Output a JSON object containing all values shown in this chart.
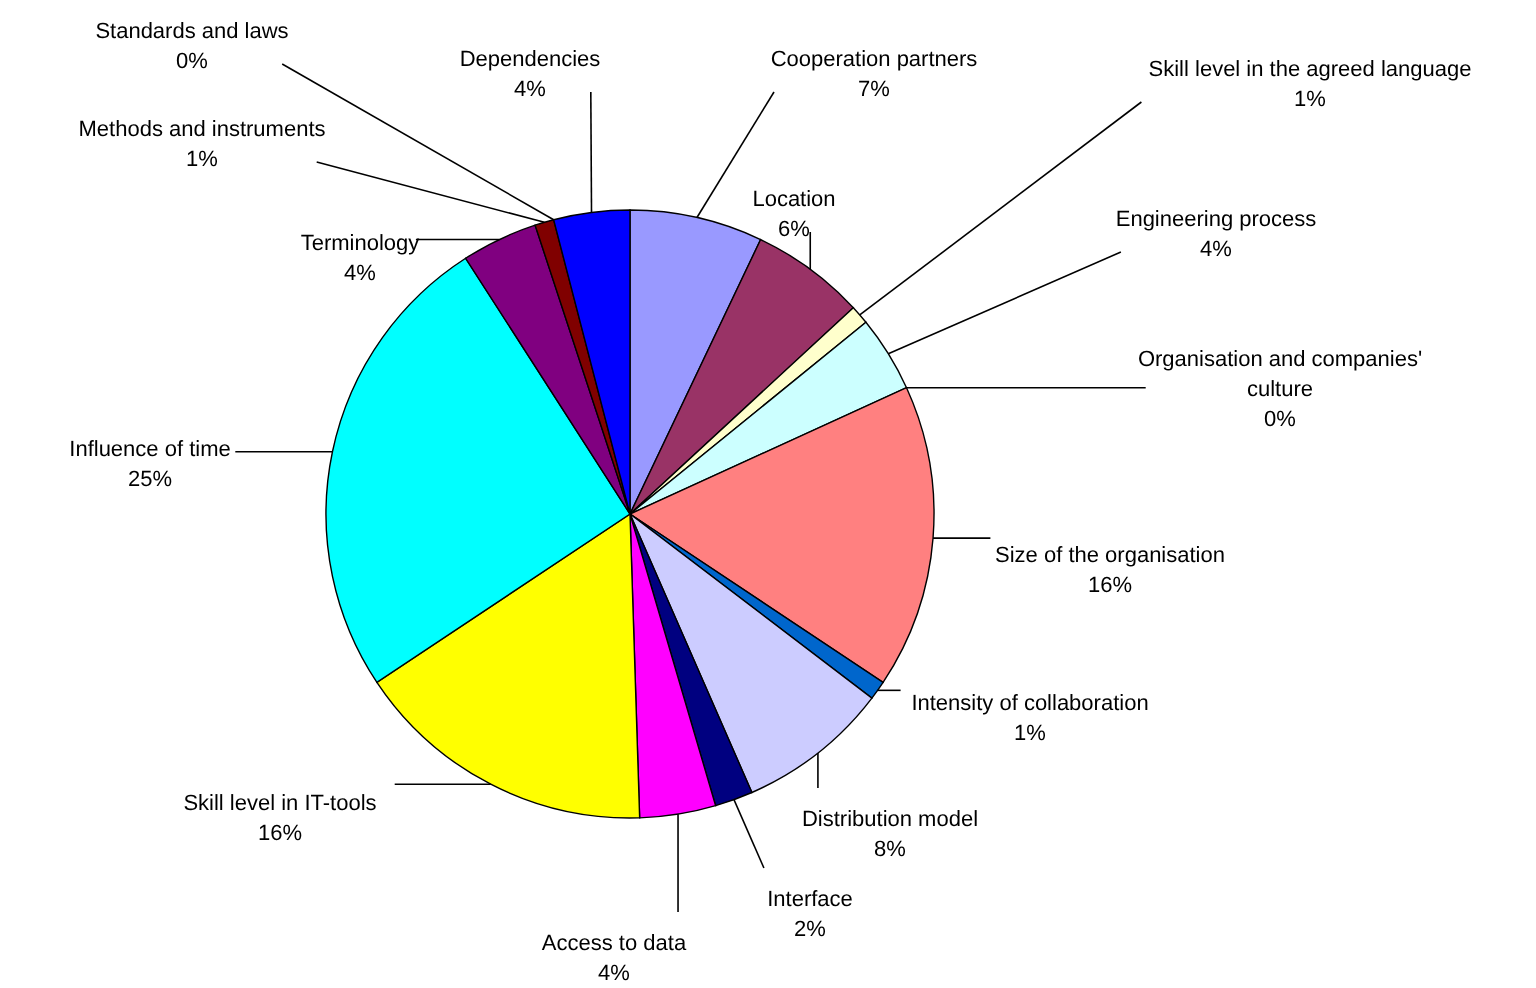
{
  "chart_data": {
    "type": "pie",
    "categories": [
      "Cooperation partners",
      "Location",
      "Skill level in the agreed language",
      "Engineering process",
      "Organisation and companies' culture",
      "Size of the organisation",
      "Intensity of collaboration",
      "Distribution model",
      "Interface",
      "Access to data",
      "Skill level in IT-tools",
      "Influence of time",
      "Terminology",
      "Methods and instruments",
      "Standards and laws",
      "Dependencies"
    ],
    "values": [
      7,
      6,
      1,
      4,
      0,
      16,
      1,
      8,
      2,
      4,
      16,
      25,
      4,
      1,
      0,
      4
    ],
    "value_labels": [
      "7%",
      "6%",
      "1%",
      "4%",
      "0%",
      "16%",
      "1%",
      "8%",
      "2%",
      "4%",
      "16%",
      "25%",
      "4%",
      "1%",
      "0%",
      "4%"
    ],
    "colors": [
      "#9999ff",
      "#993366",
      "#ffffcc",
      "#ccffff",
      "#660066",
      "#ff8080",
      "#0066cc",
      "#ccccff",
      "#000080",
      "#ff00ff",
      "#ffff00",
      "#00ffff",
      "#800080",
      "#800000",
      "#008080",
      "#0000ff"
    ]
  }
}
